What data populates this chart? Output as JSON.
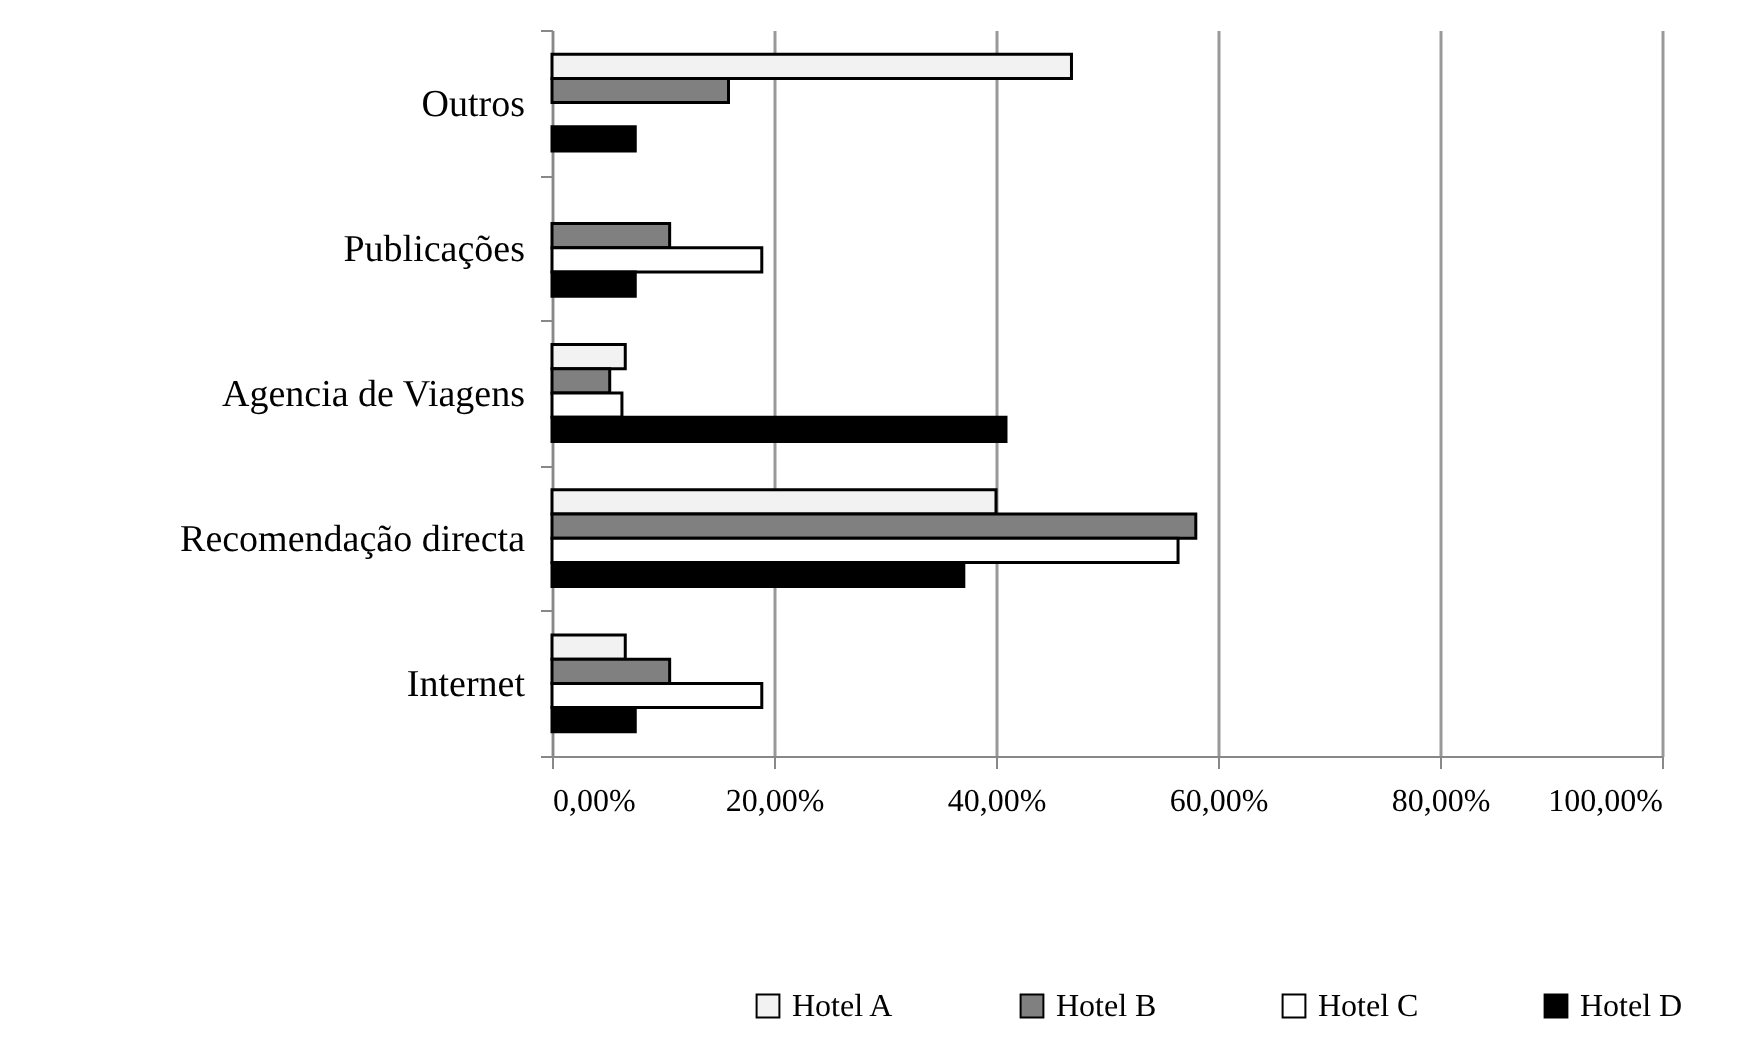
{
  "chart_data": {
    "type": "bar",
    "orientation": "horizontal",
    "categories": [
      "Outros",
      "Publicações",
      "Agencia de Viagens",
      "Recomendação directa",
      "Internet"
    ],
    "series": [
      {
        "name": "Hotel A",
        "color": "#f2f2f2",
        "values": [
          46.8,
          null,
          6.6,
          40.0,
          6.6
        ]
      },
      {
        "name": "Hotel B",
        "color": "#808080",
        "values": [
          15.9,
          10.6,
          5.2,
          58.0,
          10.6
        ]
      },
      {
        "name": "Hotel C",
        "color": "#ffffff",
        "values": [
          null,
          18.9,
          6.3,
          56.4,
          18.9
        ]
      },
      {
        "name": "Hotel D",
        "color": "#000000",
        "values": [
          7.5,
          7.5,
          40.9,
          37.1,
          7.5
        ]
      }
    ],
    "xlim": [
      0,
      100
    ],
    "xticks": [
      {
        "value": 0,
        "label": "0,00%"
      },
      {
        "value": 20,
        "label": "20,00%"
      },
      {
        "value": 40,
        "label": "40,00%"
      },
      {
        "value": 60,
        "label": "60,00%"
      },
      {
        "value": 80,
        "label": "80,00%"
      },
      {
        "value": 100,
        "label": "100,00%"
      }
    ],
    "grid": "x",
    "legend": "bottom"
  }
}
